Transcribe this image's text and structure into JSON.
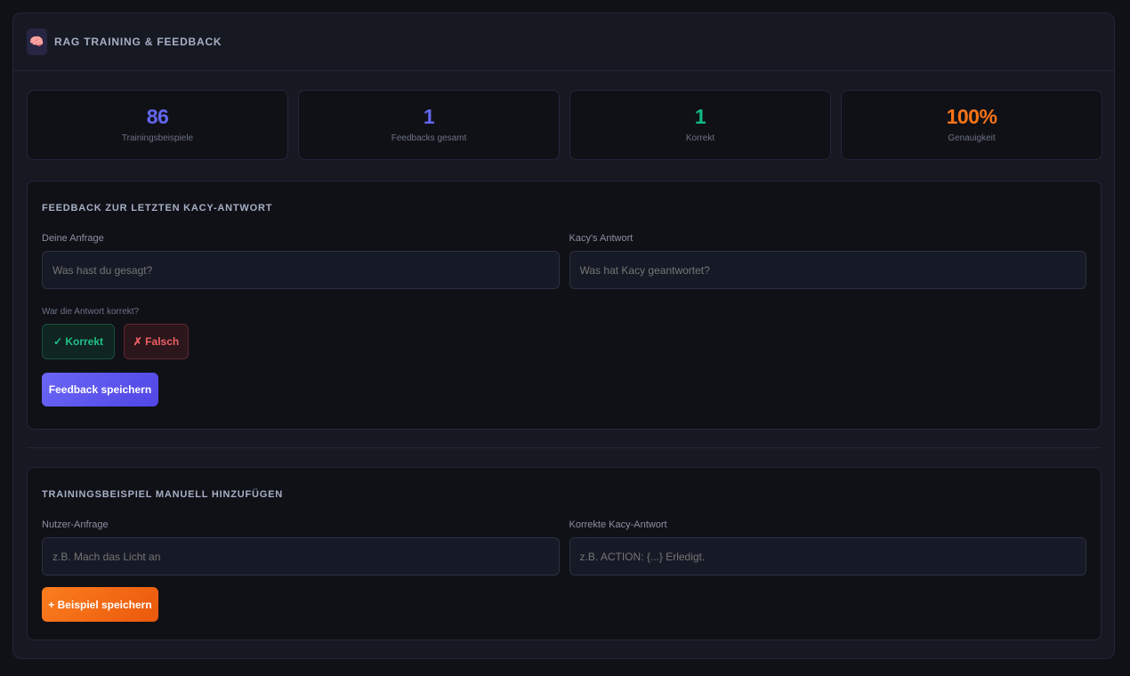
{
  "header": {
    "title": "RAG TRAINING & FEEDBACK",
    "icon": "brain-icon"
  },
  "stats": [
    {
      "value": "86",
      "label": "Trainingsbeispiele",
      "color": "#6366f1"
    },
    {
      "value": "1",
      "label": "Feedbacks gesamt",
      "color": "#6366f1"
    },
    {
      "value": "1",
      "label": "Korrekt",
      "color": "#10b981"
    },
    {
      "value": "100%",
      "label": "Genauigkeit",
      "color": "#f97316"
    }
  ],
  "feedback": {
    "title": "FEEDBACK ZUR LETZTEN KACY-ANTWORT",
    "query_label": "Deine Anfrage",
    "query_placeholder": "Was hast du gesagt?",
    "answer_label": "Kacy's Antwort",
    "answer_placeholder": "Was hat Kacy geantwortet?",
    "question": "War die Antwort korrekt?",
    "correct": "✓ Korrekt",
    "wrong": "✗ Falsch",
    "save": "Feedback speichern"
  },
  "training": {
    "title": "TRAININGSBEISPIEL MANUELL HINZUFÜGEN",
    "query_label": "Nutzer-Anfrage",
    "query_placeholder": "z.B. Mach das Licht an",
    "answer_label": "Korrekte Kacy-Antwort",
    "answer_placeholder": "z.B. ACTION: {...} Erledigt.",
    "save": "+ Beispiel speichern"
  }
}
